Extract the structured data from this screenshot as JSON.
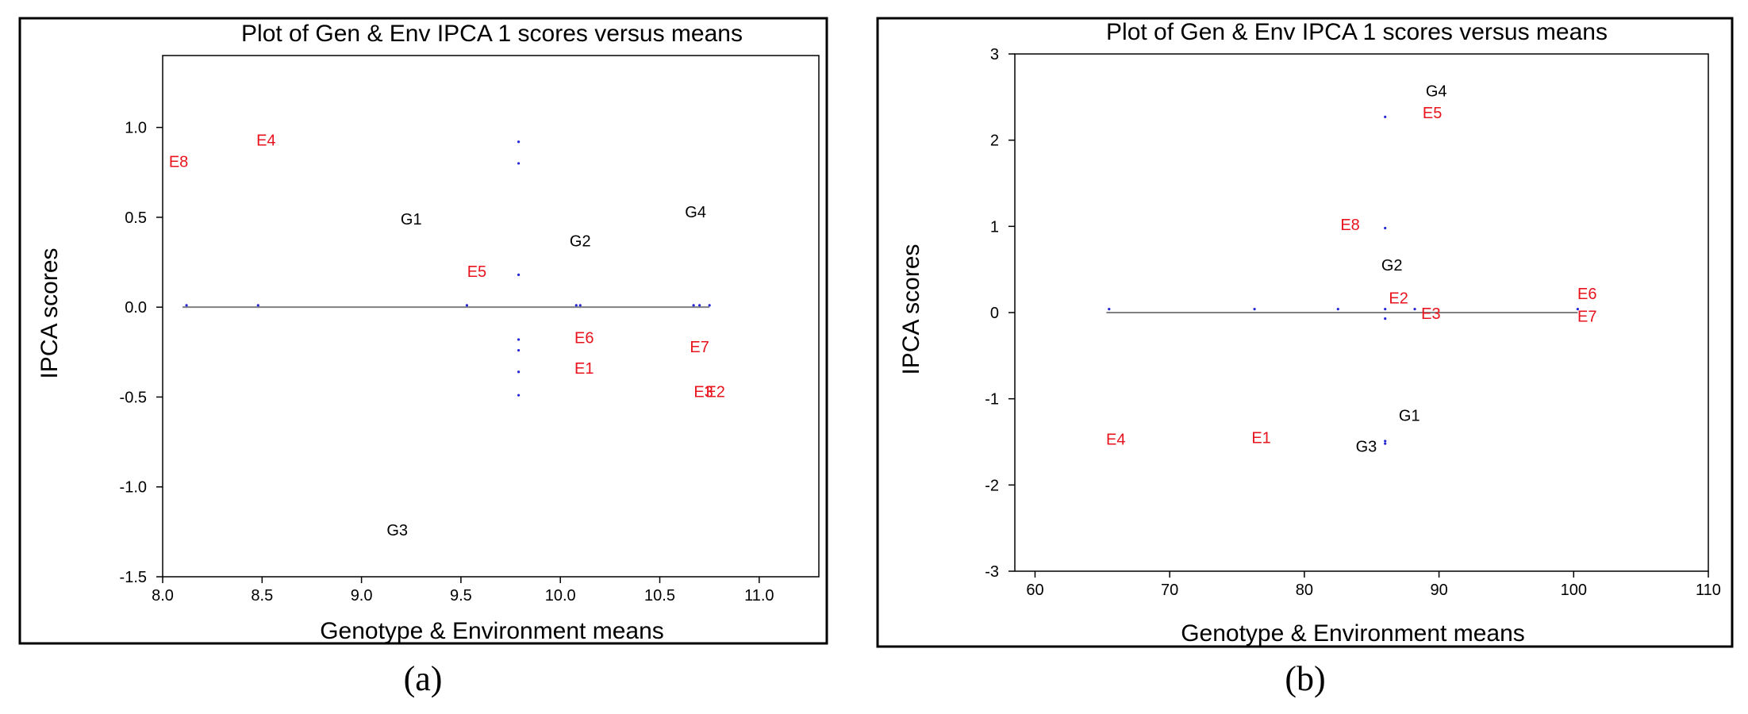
{
  "colors": {
    "genotype": "#000000",
    "environment": "#e8131c",
    "dot": "#2626d9",
    "baseline": "#808080"
  },
  "chart_data": [
    {
      "type": "scatter",
      "panel": "(a)",
      "title": "Plot of Gen & Env IPCA 1 scores versus means",
      "xlabel": "Genotype & Environment means",
      "ylabel": "IPCA scores",
      "xlim": [
        8.0,
        11.3
      ],
      "ylim": [
        -1.5,
        1.4
      ],
      "xticks": [
        "8.0",
        "8.5",
        "9.0",
        "9.5",
        "10.0",
        "10.5",
        "11.0"
      ],
      "xtick_values": [
        8.0,
        8.5,
        9.0,
        9.5,
        10.0,
        10.5,
        11.0
      ],
      "yticks": [
        "-1.5",
        "-1.0",
        "-0.5",
        "0.0",
        "0.5",
        "1.0"
      ],
      "ytick_values": [
        -1.5,
        -1.0,
        -0.5,
        0.0,
        0.5,
        1.0
      ],
      "baseline": {
        "y": 0.0,
        "x": [
          8.1,
          10.75
        ]
      },
      "genotypes": [
        {
          "label": "G1",
          "x": 9.25,
          "y": 0.49
        },
        {
          "label": "G2",
          "x": 10.1,
          "y": 0.37
        },
        {
          "label": "G3",
          "x": 9.18,
          "y": -1.24
        },
        {
          "label": "G4",
          "x": 10.68,
          "y": 0.53
        }
      ],
      "environments": [
        {
          "label": "E1",
          "x": 10.12,
          "y": -0.34
        },
        {
          "label": "E2",
          "x": 10.78,
          "y": -0.47
        },
        {
          "label": "E3",
          "x": 10.72,
          "y": -0.47
        },
        {
          "label": "E4",
          "x": 8.52,
          "y": 0.93
        },
        {
          "label": "E5",
          "x": 9.58,
          "y": 0.2
        },
        {
          "label": "E6",
          "x": 10.12,
          "y": -0.17
        },
        {
          "label": "E7",
          "x": 10.7,
          "y": -0.22
        },
        {
          "label": "E8",
          "x": 8.08,
          "y": 0.81
        }
      ],
      "dots": [
        {
          "x": 9.79,
          "y": 0.92
        },
        {
          "x": 9.79,
          "y": 0.8
        },
        {
          "x": 9.79,
          "y": 0.18
        },
        {
          "x": 9.79,
          "y": -0.18
        },
        {
          "x": 9.79,
          "y": -0.24
        },
        {
          "x": 9.79,
          "y": -0.36
        },
        {
          "x": 9.79,
          "y": -0.49
        },
        {
          "x": 8.12,
          "y": 0.01
        },
        {
          "x": 8.48,
          "y": 0.01
        },
        {
          "x": 9.53,
          "y": 0.01
        },
        {
          "x": 10.08,
          "y": 0.01
        },
        {
          "x": 10.1,
          "y": 0.01
        },
        {
          "x": 10.67,
          "y": 0.01
        },
        {
          "x": 10.7,
          "y": 0.01
        },
        {
          "x": 10.75,
          "y": 0.01
        }
      ]
    },
    {
      "type": "scatter",
      "panel": "(b)",
      "title": "Plot of Gen & Env IPCA 1 scores versus means",
      "xlabel": "Genotype & Environment means",
      "ylabel": "IPCA scores",
      "xlim": [
        58.5,
        110
      ],
      "ylim": [
        -3,
        3
      ],
      "xticks": [
        "60",
        "70",
        "80",
        "90",
        "100",
        "110"
      ],
      "xtick_values": [
        60,
        70,
        80,
        90,
        100,
        110
      ],
      "yticks": [
        "-3",
        "-2",
        "-1",
        "0",
        "1",
        "2",
        "3"
      ],
      "ytick_values": [
        -3,
        -2,
        -1,
        0,
        1,
        2,
        3
      ],
      "baseline": {
        "y": 0.0,
        "x": [
          65.3,
          100.3
        ]
      },
      "genotypes": [
        {
          "label": "G1",
          "x": 87.8,
          "y": -1.19
        },
        {
          "label": "G2",
          "x": 86.5,
          "y": 0.55
        },
        {
          "label": "G3",
          "x": 84.6,
          "y": -1.55
        },
        {
          "label": "G4",
          "x": 89.8,
          "y": 2.57
        }
      ],
      "environments": [
        {
          "label": "E1",
          "x": 76.8,
          "y": -1.45
        },
        {
          "label": "E2",
          "x": 87.0,
          "y": 0.17
        },
        {
          "label": "E3",
          "x": 89.4,
          "y": -0.01
        },
        {
          "label": "E4",
          "x": 66.0,
          "y": -1.47
        },
        {
          "label": "E5",
          "x": 89.5,
          "y": 2.32
        },
        {
          "label": "E6",
          "x": 101.0,
          "y": 0.22
        },
        {
          "label": "E7",
          "x": 101.0,
          "y": -0.04
        },
        {
          "label": "E8",
          "x": 83.4,
          "y": 1.02
        }
      ],
      "dots": [
        {
          "x": 86.0,
          "y": 2.27
        },
        {
          "x": 86.0,
          "y": 0.98
        },
        {
          "x": 86.0,
          "y": 0.04
        },
        {
          "x": 86.0,
          "y": -0.07
        },
        {
          "x": 86.0,
          "y": -1.49
        },
        {
          "x": 86.0,
          "y": -1.52
        },
        {
          "x": 65.5,
          "y": 0.04
        },
        {
          "x": 76.3,
          "y": 0.04
        },
        {
          "x": 82.5,
          "y": 0.04
        },
        {
          "x": 88.2,
          "y": 0.04
        },
        {
          "x": 100.3,
          "y": 0.04
        }
      ]
    }
  ]
}
